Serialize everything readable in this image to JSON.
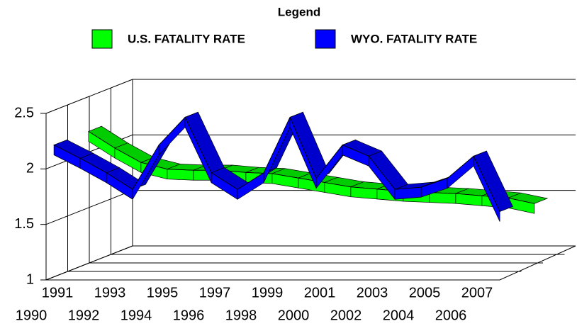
{
  "chart_data": {
    "type": "line3d",
    "legend_title": "Legend",
    "categories": [
      "1990",
      "1991",
      "1992",
      "1993",
      "1994",
      "1995",
      "1996",
      "1997",
      "1998",
      "1999",
      "2000",
      "2001",
      "2002",
      "2003",
      "2004",
      "2005",
      "2006",
      "2007"
    ],
    "series": [
      {
        "name": "U.S. FATALITY RATE",
        "color": "#00ff00",
        "values": [
          2.2,
          2.05,
          1.92,
          1.86,
          1.85,
          1.85,
          1.83,
          1.82,
          1.78,
          1.74,
          1.7,
          1.68,
          1.66,
          1.65,
          1.64,
          1.62,
          1.6,
          1.55
        ]
      },
      {
        "name": "WYO. FATALITY RATE",
        "color": "#0000ff",
        "values": [
          2.2,
          2.08,
          1.95,
          1.8,
          2.2,
          2.45,
          1.95,
          1.8,
          1.95,
          2.45,
          1.9,
          2.2,
          2.1,
          1.8,
          1.82,
          1.9,
          2.1,
          1.6
        ]
      }
    ],
    "ylim": [
      1,
      2.5
    ],
    "yticks": [
      1,
      1.5,
      2,
      2.5
    ],
    "grid": true
  }
}
